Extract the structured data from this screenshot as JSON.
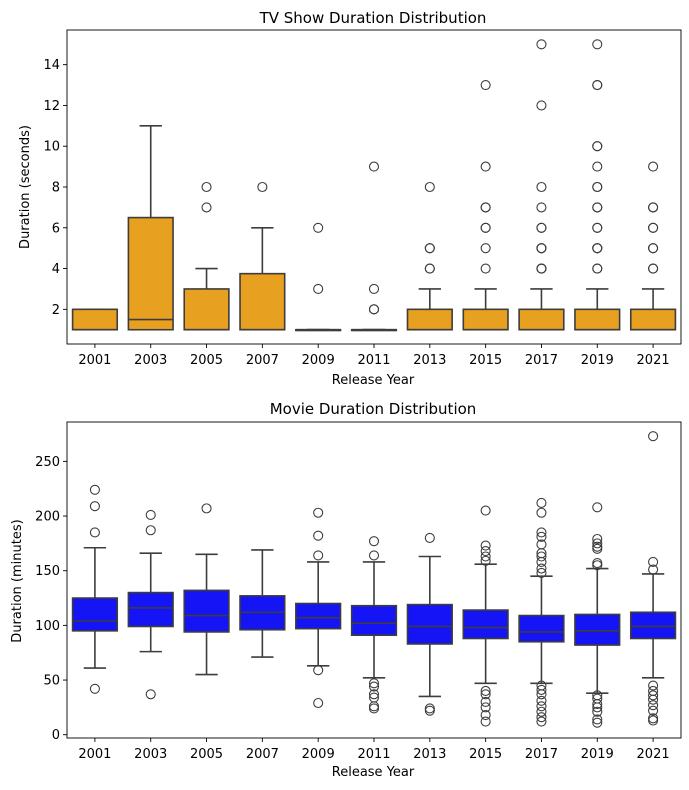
{
  "chart_data": [
    {
      "type": "box",
      "title": "TV Show Duration Distribution",
      "xlabel": "Release Year",
      "ylabel": "Duration (seconds)",
      "ylim": [
        0.3,
        15.7
      ],
      "yticks": [
        2,
        4,
        6,
        8,
        10,
        12,
        14
      ],
      "categories": [
        "2001",
        "2003",
        "2005",
        "2007",
        "2009",
        "2011",
        "2013",
        "2015",
        "2017",
        "2019",
        "2021"
      ],
      "box_color": "#e8a020",
      "boxes": [
        {
          "q1": 1,
          "median": 1,
          "q3": 2,
          "wlo": 1,
          "whi": 2,
          "outliers": []
        },
        {
          "q1": 1,
          "median": 1.5,
          "q3": 6.5,
          "wlo": 1,
          "whi": 11,
          "outliers": []
        },
        {
          "q1": 1,
          "median": 1,
          "q3": 3,
          "wlo": 1,
          "whi": 4,
          "outliers": [
            7,
            8
          ]
        },
        {
          "q1": 1,
          "median": 1,
          "q3": 3.75,
          "wlo": 1,
          "whi": 6,
          "outliers": [
            8
          ]
        },
        {
          "q1": 1,
          "median": 1,
          "q3": 1,
          "wlo": 1,
          "whi": 1,
          "outliers": [
            3,
            6
          ]
        },
        {
          "q1": 1,
          "median": 1,
          "q3": 1,
          "wlo": 1,
          "whi": 1,
          "outliers": [
            2,
            2,
            3,
            9
          ]
        },
        {
          "q1": 1,
          "median": 1,
          "q3": 2,
          "wlo": 1,
          "whi": 3,
          "outliers": [
            4,
            4,
            5,
            5,
            8
          ]
        },
        {
          "q1": 1,
          "median": 1,
          "q3": 2,
          "wlo": 1,
          "whi": 3,
          "outliers": [
            4,
            5,
            6,
            6,
            7,
            7,
            9,
            13
          ]
        },
        {
          "q1": 1,
          "median": 1,
          "q3": 2,
          "wlo": 1,
          "whi": 3,
          "outliers": [
            4,
            4,
            4,
            5,
            5,
            5,
            6,
            6,
            7,
            8,
            12,
            15
          ]
        },
        {
          "q1": 1,
          "median": 1,
          "q3": 2,
          "wlo": 1,
          "whi": 3,
          "outliers": [
            4,
            4,
            5,
            5,
            5,
            6,
            6,
            7,
            7,
            8,
            8,
            9,
            10,
            10,
            13,
            13,
            15
          ]
        },
        {
          "q1": 1,
          "median": 1,
          "q3": 2,
          "wlo": 1,
          "whi": 3,
          "outliers": [
            4,
            4,
            5,
            5,
            6,
            6,
            7,
            7,
            9
          ]
        }
      ]
    },
    {
      "type": "box",
      "title": "Movie Duration Distribution",
      "xlabel": "Release Year",
      "ylabel": "Duration (minutes)",
      "ylim": [
        -3,
        286
      ],
      "yticks": [
        0,
        50,
        100,
        150,
        200,
        250
      ],
      "categories": [
        "2001",
        "2003",
        "2005",
        "2007",
        "2009",
        "2011",
        "2013",
        "2015",
        "2017",
        "2019",
        "2021"
      ],
      "box_color": "#1414f5",
      "boxes": [
        {
          "q1": 95,
          "median": 104,
          "q3": 125,
          "wlo": 61,
          "whi": 171,
          "outliers": [
            42,
            185,
            209,
            224
          ]
        },
        {
          "q1": 99,
          "median": 116,
          "q3": 130,
          "wlo": 76,
          "whi": 166,
          "outliers": [
            37,
            187,
            201
          ]
        },
        {
          "q1": 94,
          "median": 109,
          "q3": 132,
          "wlo": 55,
          "whi": 165,
          "outliers": [
            207
          ]
        },
        {
          "q1": 96,
          "median": 112,
          "q3": 127,
          "wlo": 71,
          "whi": 169,
          "outliers": []
        },
        {
          "q1": 97,
          "median": 107,
          "q3": 120,
          "wlo": 63,
          "whi": 158,
          "outliers": [
            29,
            59,
            164,
            182,
            203
          ]
        },
        {
          "q1": 91,
          "median": 102,
          "q3": 118,
          "wlo": 52,
          "whi": 158,
          "outliers": [
            24,
            26,
            34,
            37,
            44,
            47,
            164,
            177
          ]
        },
        {
          "q1": 83,
          "median": 99,
          "q3": 119,
          "wlo": 35,
          "whi": 163,
          "outliers": [
            22,
            24,
            180
          ]
        },
        {
          "q1": 88,
          "median": 98,
          "q3": 114,
          "wlo": 47,
          "whi": 156,
          "outliers": [
            12,
            18,
            25,
            30,
            37,
            40,
            159,
            163,
            168,
            173,
            205
          ]
        },
        {
          "q1": 85,
          "median": 94,
          "q3": 109,
          "wlo": 47,
          "whi": 145,
          "outliers": [
            12,
            16,
            21,
            26,
            31,
            37,
            41,
            45,
            148,
            152,
            158,
            163,
            166,
            174,
            181,
            185,
            203,
            212
          ]
        },
        {
          "q1": 82,
          "median": 95,
          "q3": 110,
          "wlo": 38,
          "whi": 152,
          "outliers": [
            11,
            14,
            21,
            25,
            28,
            33,
            36,
            155,
            157,
            170,
            172,
            175,
            179,
            208
          ]
        },
        {
          "q1": 88,
          "median": 99,
          "q3": 112,
          "wlo": 52,
          "whi": 147,
          "outliers": [
            13,
            15,
            22,
            27,
            32,
            36,
            40,
            45,
            151,
            158,
            273
          ]
        }
      ]
    }
  ]
}
